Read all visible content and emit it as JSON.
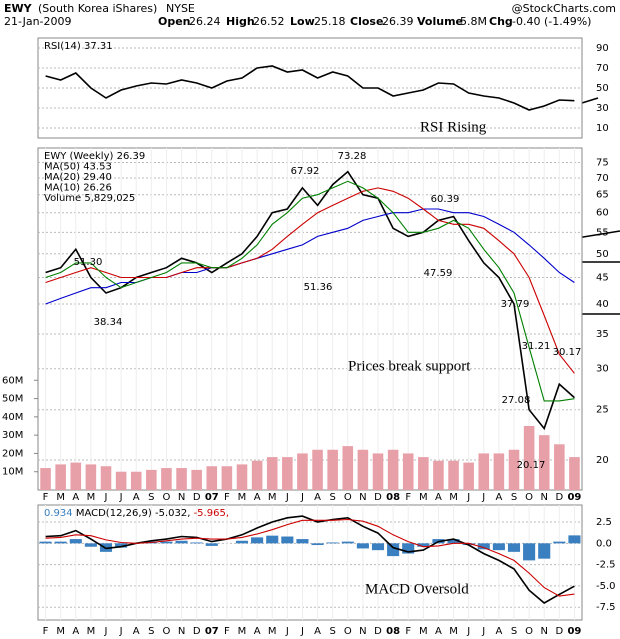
{
  "header": {
    "symbol": "EWY",
    "name": "(South Korea iShares)",
    "exchange": "NYSE",
    "date": "21-Jan-2009",
    "open_label": "Open",
    "open": "26.24",
    "high_label": "High",
    "high": "26.52",
    "low_label": "Low",
    "low": "25.18",
    "close_label": "Close",
    "close": "26.39",
    "volume_label": "Volume",
    "volume": "5.8M",
    "chg_label": "Chg",
    "chg": "-0.40 (-1.49%)",
    "source": "@StockCharts.com"
  },
  "chart_data": [
    {
      "type": "line",
      "title": "RSI(14)",
      "last": "37.31",
      "ylim": [
        0,
        100
      ],
      "yticks": [
        10,
        30,
        50,
        70,
        90
      ],
      "grid": true,
      "series": [
        {
          "color": "#000000",
          "values": [
            62,
            58,
            65,
            50,
            40,
            48,
            52,
            55,
            54,
            58,
            55,
            50,
            57,
            60,
            70,
            72,
            66,
            68,
            60,
            66,
            62,
            50,
            50,
            42,
            45,
            48,
            55,
            54,
            45,
            42,
            40,
            35,
            28,
            32,
            38,
            37.31
          ]
        }
      ],
      "annotations": [
        "RSI Rising"
      ]
    },
    {
      "type": "line",
      "log_scale": true,
      "ylim": [
        17.5,
        80
      ],
      "yticks": [
        20,
        25,
        30,
        35,
        40,
        45,
        50,
        55,
        60,
        65,
        70,
        75
      ],
      "grid": true,
      "categories": [
        "F",
        "M",
        "A",
        "M",
        "J",
        "J",
        "A",
        "S",
        "O",
        "N",
        "D",
        "07",
        "F",
        "M",
        "A",
        "M",
        "J",
        "J",
        "A",
        "S",
        "O",
        "N",
        "D",
        "08",
        "F",
        "M",
        "A",
        "M",
        "J",
        "J",
        "A",
        "S",
        "O",
        "N",
        "D",
        "09"
      ],
      "series": [
        {
          "name": "EWY (Weekly)",
          "last": "26.39",
          "color": "#000000",
          "values": [
            46,
            47,
            51,
            45,
            42,
            43,
            45,
            46,
            47,
            49,
            48,
            46,
            48,
            50,
            54,
            60,
            61,
            67,
            62,
            68,
            72,
            65,
            64,
            56,
            54,
            55,
            58,
            59,
            53,
            48,
            45,
            40,
            25,
            23,
            28,
            26.39
          ]
        },
        {
          "name": "MA(50)",
          "last": "43.53",
          "color": "#0000cc",
          "values": [
            40,
            41,
            42,
            43,
            43,
            44,
            44,
            45,
            45,
            46,
            46,
            47,
            47,
            48,
            49,
            50,
            51,
            52,
            54,
            55,
            56,
            58,
            59,
            60,
            60,
            61,
            61,
            60,
            60,
            59,
            57,
            55,
            52,
            49,
            46,
            44
          ]
        },
        {
          "name": "MA(20)",
          "last": "29.40",
          "color": "#cc0000",
          "values": [
            44,
            45,
            46,
            47,
            46,
            45,
            45,
            45,
            45,
            46,
            47,
            47,
            47,
            48,
            49,
            51,
            54,
            57,
            60,
            62,
            64,
            66,
            67,
            66,
            64,
            61,
            58,
            57,
            57,
            56,
            53,
            50,
            45,
            38,
            32,
            29.4
          ]
        },
        {
          "name": "MA(10)",
          "last": "26.26",
          "color": "#008000",
          "values": [
            45,
            46,
            48,
            48,
            45,
            43,
            44,
            45,
            46,
            48,
            48,
            47,
            47,
            49,
            52,
            57,
            60,
            64,
            65,
            67,
            69,
            67,
            64,
            60,
            55,
            55,
            56,
            58,
            56,
            51,
            47,
            42,
            33,
            26,
            26,
            26.26
          ]
        }
      ],
      "volume": {
        "name": "Volume",
        "last": "5,829,025",
        "color": "#e8a0a8",
        "ylim": [
          0,
          70
        ],
        "yticks": [
          {
            "value": 10,
            "label": "10M"
          },
          {
            "value": 20,
            "label": "20M"
          },
          {
            "value": 30,
            "label": "30M"
          },
          {
            "value": 40,
            "label": "40M"
          },
          {
            "value": 50,
            "label": "50M"
          },
          {
            "value": 60,
            "label": "60M"
          }
        ],
        "values": [
          12,
          14,
          15,
          14,
          13,
          10,
          10,
          11,
          12,
          12,
          11,
          13,
          13,
          14,
          16,
          18,
          18,
          20,
          22,
          22,
          24,
          22,
          20,
          22,
          20,
          18,
          16,
          16,
          15,
          20,
          20,
          22,
          35,
          30,
          25,
          18
        ]
      },
      "annotations": [
        "51.30",
        "38.34",
        "67.92",
        "51.36",
        "73.28",
        "47.59",
        "60.39",
        "37.79",
        "31.21",
        "30.17",
        "27.08",
        "20.17",
        "Prices break support"
      ]
    },
    {
      "type": "line",
      "ylim": [
        -9,
        4.5
      ],
      "yticks": [
        2.5,
        {
          "value": 0,
          "label": "0.0"
        },
        -2.5,
        {
          "value": -5,
          "label": "-5.0"
        },
        -7.5
      ],
      "grid": true,
      "categories": [
        "F",
        "M",
        "A",
        "M",
        "J",
        "J",
        "A",
        "S",
        "O",
        "N",
        "D",
        "07",
        "F",
        "M",
        "A",
        "M",
        "J",
        "J",
        "A",
        "S",
        "O",
        "N",
        "D",
        "08",
        "F",
        "M",
        "A",
        "M",
        "J",
        "J",
        "A",
        "S",
        "O",
        "N",
        "D",
        "09"
      ],
      "series": [
        {
          "type": "bar",
          "last": "0.934",
          "color": "#3a7fc0",
          "values": [
            0.2,
            0.2,
            0.5,
            -0.4,
            -1.0,
            -0.5,
            0,
            0.2,
            0.2,
            0.3,
            0.1,
            -0.3,
            0,
            0.3,
            0.7,
            0.9,
            0.8,
            0.5,
            -0.2,
            0.1,
            0.2,
            -0.6,
            -0.8,
            -1.5,
            -1.2,
            -0.4,
            0.5,
            0.5,
            -0.2,
            -0.7,
            -0.8,
            -1.0,
            -2.0,
            -1.8,
            0.2,
            0.934
          ]
        },
        {
          "name": "MACD(12,26,9)",
          "last": "-5.032,",
          "color": "#000000",
          "values": [
            0.8,
            0.9,
            1.5,
            0.5,
            -0.6,
            -0.4,
            0,
            0.3,
            0.5,
            0.8,
            0.7,
            0.2,
            0.5,
            1.0,
            1.8,
            2.5,
            3.0,
            3.2,
            2.5,
            2.8,
            3.0,
            2.0,
            1.2,
            -0.5,
            -1.0,
            -0.8,
            0.2,
            0.5,
            -0.2,
            -1.2,
            -2.0,
            -3.0,
            -5.5,
            -7.0,
            -6.0,
            -5.032
          ]
        },
        {
          "last": "-5.965,",
          "color": "#cc0000",
          "values": [
            0.6,
            0.7,
            1.0,
            0.9,
            0.4,
            0.1,
            0,
            0.1,
            0.3,
            0.5,
            0.6,
            0.5,
            0.5,
            0.7,
            1.1,
            1.6,
            2.2,
            2.7,
            2.7,
            2.7,
            2.8,
            2.6,
            2.0,
            1.0,
            0.2,
            -0.4,
            -0.3,
            0,
            0,
            -0.5,
            -1.2,
            -2.0,
            -3.5,
            -5.2,
            -6.2,
            -5.965
          ]
        }
      ],
      "annotations": [
        "MACD Oversold"
      ]
    }
  ]
}
